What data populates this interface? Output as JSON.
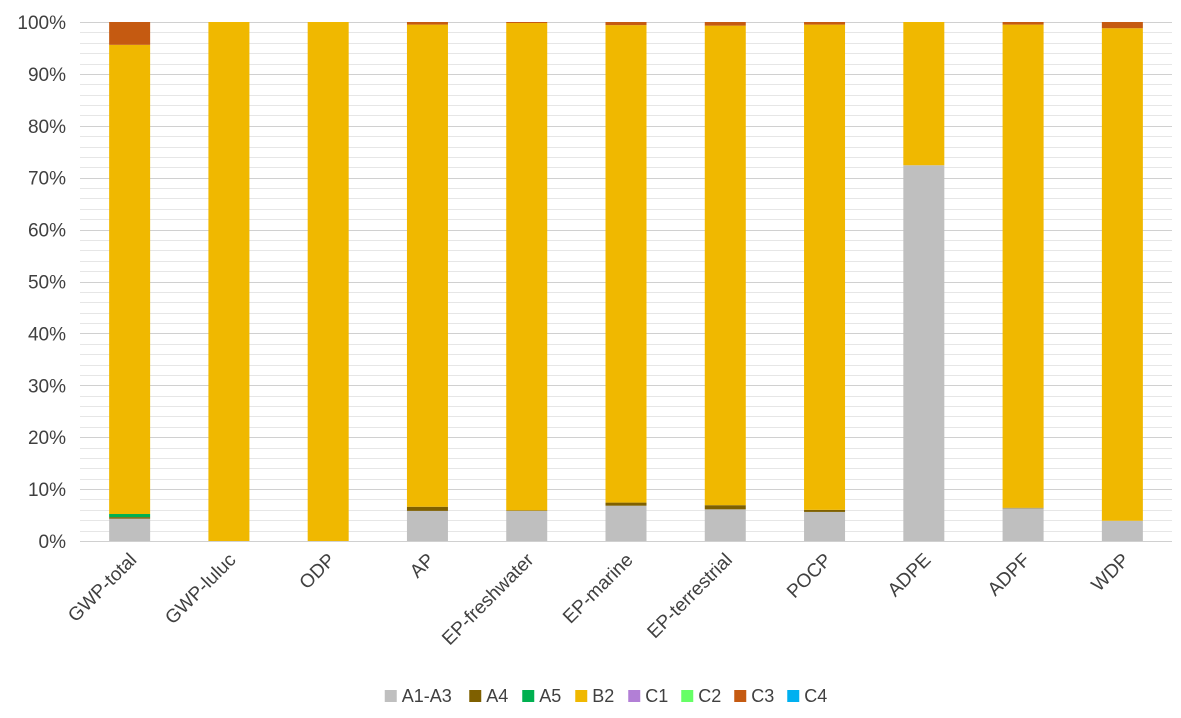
{
  "colors": {
    "A1-A3": "#bfbfbf",
    "A4": "#7f6000",
    "A5": "#00b050",
    "B2": "#f0b800",
    "C1": "#b27fd6",
    "C2": "#66ff66",
    "C3": "#c55a11",
    "C4": "#00b0f0",
    "minor_grid": "#e6e6e6",
    "major_grid": "#d0d0d0",
    "text": "#404040"
  },
  "chart_data": {
    "type": "bar",
    "stacked": true,
    "percent": true,
    "title": "",
    "xlabel": "",
    "ylabel": "",
    "ylim": [
      0,
      100
    ],
    "y_ticks": [
      "0%",
      "10%",
      "20%",
      "30%",
      "40%",
      "50%",
      "60%",
      "70%",
      "80%",
      "90%",
      "100%"
    ],
    "grid": true,
    "legend_position": "bottom",
    "categories": [
      "GWP-total",
      "GWP-luluc",
      "ODP",
      "AP",
      "EP-freshwater",
      "EP-marine",
      "EP-terrestrial",
      "POCP",
      "ADPE",
      "ADPF",
      "WDP"
    ],
    "series": [
      {
        "name": "A1-A3",
        "values": [
          4.3,
          0,
          0,
          5.8,
          5.8,
          6.8,
          6.1,
          5.6,
          72.4,
          6.3,
          3.9
        ]
      },
      {
        "name": "A4",
        "values": [
          0.3,
          0,
          0,
          0.8,
          0.1,
          0.6,
          0.8,
          0.4,
          0,
          0.1,
          0
        ]
      },
      {
        "name": "A5",
        "values": [
          0.6,
          0,
          0,
          0,
          0,
          0,
          0,
          0,
          0,
          0,
          0
        ]
      },
      {
        "name": "B2",
        "values": [
          90.4,
          100,
          100,
          92.9,
          93.9,
          92.0,
          92.4,
          93.5,
          27.6,
          93.1,
          94.9
        ]
      },
      {
        "name": "C1",
        "values": [
          0,
          0,
          0,
          0,
          0,
          0,
          0,
          0,
          0,
          0,
          0
        ]
      },
      {
        "name": "C2",
        "values": [
          0,
          0,
          0,
          0,
          0,
          0,
          0,
          0,
          0,
          0,
          0
        ]
      },
      {
        "name": "C3",
        "values": [
          4.4,
          0,
          0,
          0.5,
          0.2,
          0.6,
          0.7,
          0.5,
          0,
          0.5,
          1.2
        ]
      },
      {
        "name": "C4",
        "values": [
          0,
          0,
          0,
          0,
          0,
          0,
          0,
          0,
          0,
          0,
          0
        ]
      }
    ]
  }
}
